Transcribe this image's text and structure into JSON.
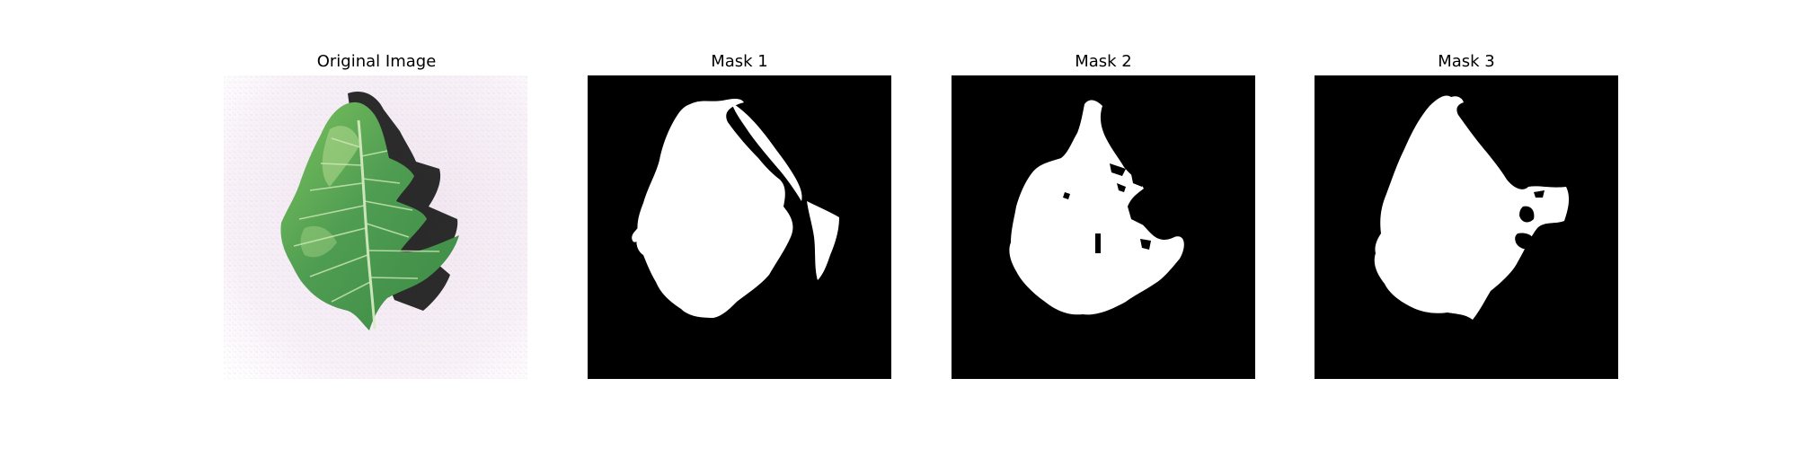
{
  "figure": {
    "panels": [
      {
        "title": "Original Image"
      },
      {
        "title": "Mask 1"
      },
      {
        "title": "Mask 2"
      },
      {
        "title": "Mask 3"
      }
    ]
  },
  "colors": {
    "background": "#ffffff",
    "mask_background": "#000000",
    "mask_foreground": "#ffffff",
    "leaf_green": "#4f9d52",
    "leaf_dark": "#2c6b34",
    "leaf_light": "#a9d487",
    "shadow": "#111111",
    "photo_background": "#f7eef6"
  }
}
